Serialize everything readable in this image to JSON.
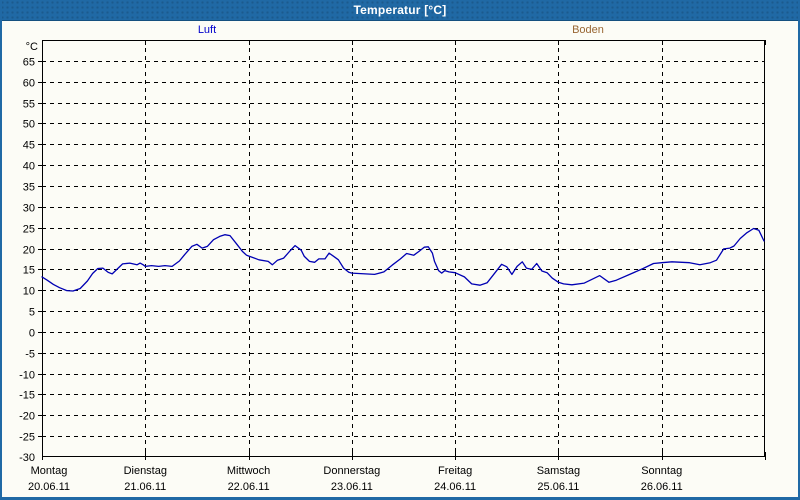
{
  "window": {
    "title": "Temperatur [°C]"
  },
  "legend": {
    "position": "top",
    "series": [
      {
        "label": "Luft",
        "color": "#0000cc"
      },
      {
        "label": "Boden",
        "color": "#996633"
      }
    ]
  },
  "chart_data": {
    "type": "line",
    "title": "Temperatur [°C]",
    "ylabel": "°C",
    "ylim": [
      -30,
      70
    ],
    "ytick_step": 5,
    "ytick_label_min": -30,
    "ytick_label_max": 65,
    "grid": "dashed",
    "x_days": [
      {
        "name": "Montag",
        "date": "20.06.11"
      },
      {
        "name": "Dienstag",
        "date": "21.06.11"
      },
      {
        "name": "Mittwoch",
        "date": "22.06.11"
      },
      {
        "name": "Donnerstag",
        "date": "23.06.11"
      },
      {
        "name": "Freitag",
        "date": "24.06.11"
      },
      {
        "name": "Samstag",
        "date": "25.06.11"
      },
      {
        "name": "Sonntag",
        "date": "26.06.11"
      }
    ],
    "x_unit": "days_from_20_06_11",
    "series": [
      {
        "name": "Luft",
        "color": "#0000b3",
        "points": [
          [
            0.0,
            13.2
          ],
          [
            0.05,
            12.4
          ],
          [
            0.11,
            11.4
          ],
          [
            0.17,
            10.6
          ],
          [
            0.24,
            9.9
          ],
          [
            0.3,
            9.8
          ],
          [
            0.37,
            10.4
          ],
          [
            0.44,
            12.2
          ],
          [
            0.49,
            14.0
          ],
          [
            0.54,
            15.2
          ],
          [
            0.59,
            15.3
          ],
          [
            0.64,
            14.3
          ],
          [
            0.68,
            13.9
          ],
          [
            0.73,
            15.1
          ],
          [
            0.78,
            16.3
          ],
          [
            0.85,
            16.5
          ],
          [
            0.92,
            16.1
          ],
          [
            0.95,
            16.5
          ],
          [
            0.98,
            16.1
          ],
          [
            1.0,
            15.7
          ],
          [
            1.06,
            15.9
          ],
          [
            1.13,
            15.7
          ],
          [
            1.19,
            15.9
          ],
          [
            1.26,
            15.7
          ],
          [
            1.33,
            17.0
          ],
          [
            1.38,
            18.5
          ],
          [
            1.45,
            20.5
          ],
          [
            1.5,
            21.0
          ],
          [
            1.55,
            20.1
          ],
          [
            1.6,
            20.5
          ],
          [
            1.66,
            22.1
          ],
          [
            1.72,
            22.9
          ],
          [
            1.77,
            23.3
          ],
          [
            1.82,
            23.1
          ],
          [
            1.89,
            20.9
          ],
          [
            1.94,
            19.3
          ],
          [
            1.98,
            18.4
          ],
          [
            2.0,
            18.2
          ],
          [
            2.1,
            17.3
          ],
          [
            2.19,
            16.9
          ],
          [
            2.23,
            16.1
          ],
          [
            2.28,
            17.2
          ],
          [
            2.34,
            17.7
          ],
          [
            2.4,
            19.4
          ],
          [
            2.45,
            20.7
          ],
          [
            2.51,
            19.6
          ],
          [
            2.54,
            18.1
          ],
          [
            2.59,
            16.9
          ],
          [
            2.64,
            16.7
          ],
          [
            2.68,
            17.5
          ],
          [
            2.74,
            17.5
          ],
          [
            2.78,
            18.9
          ],
          [
            2.83,
            18.0
          ],
          [
            2.87,
            17.3
          ],
          [
            2.92,
            15.3
          ],
          [
            2.97,
            14.3
          ],
          [
            3.0,
            14.1
          ],
          [
            3.13,
            13.9
          ],
          [
            3.22,
            13.8
          ],
          [
            3.31,
            14.4
          ],
          [
            3.39,
            16.0
          ],
          [
            3.47,
            17.5
          ],
          [
            3.53,
            18.8
          ],
          [
            3.6,
            18.4
          ],
          [
            3.65,
            19.3
          ],
          [
            3.7,
            20.3
          ],
          [
            3.74,
            20.4
          ],
          [
            3.78,
            18.9
          ],
          [
            3.8,
            16.9
          ],
          [
            3.84,
            14.7
          ],
          [
            3.87,
            14.1
          ],
          [
            3.9,
            14.7
          ],
          [
            3.94,
            14.4
          ],
          [
            4.0,
            14.2
          ],
          [
            4.09,
            13.2
          ],
          [
            4.16,
            11.5
          ],
          [
            4.24,
            11.2
          ],
          [
            4.31,
            11.8
          ],
          [
            4.37,
            13.7
          ],
          [
            4.45,
            16.2
          ],
          [
            4.5,
            15.6
          ],
          [
            4.55,
            13.8
          ],
          [
            4.6,
            15.7
          ],
          [
            4.65,
            16.8
          ],
          [
            4.69,
            15.3
          ],
          [
            4.74,
            15.0
          ],
          [
            4.79,
            16.4
          ],
          [
            4.84,
            14.6
          ],
          [
            4.89,
            14.2
          ],
          [
            4.94,
            12.9
          ],
          [
            5.0,
            11.9
          ],
          [
            5.05,
            11.5
          ],
          [
            5.13,
            11.3
          ],
          [
            5.25,
            11.7
          ],
          [
            5.35,
            12.9
          ],
          [
            5.4,
            13.5
          ],
          [
            5.49,
            11.9
          ],
          [
            5.56,
            12.4
          ],
          [
            5.69,
            13.8
          ],
          [
            5.82,
            15.2
          ],
          [
            5.92,
            16.4
          ],
          [
            6.0,
            16.6
          ],
          [
            6.1,
            16.8
          ],
          [
            6.27,
            16.6
          ],
          [
            6.37,
            16.1
          ],
          [
            6.47,
            16.6
          ],
          [
            6.53,
            17.2
          ],
          [
            6.6,
            19.9
          ],
          [
            6.66,
            20.1
          ],
          [
            6.7,
            20.6
          ],
          [
            6.76,
            22.4
          ],
          [
            6.82,
            23.7
          ],
          [
            6.89,
            24.8
          ],
          [
            6.94,
            24.4
          ],
          [
            6.99,
            21.8
          ]
        ]
      },
      {
        "name": "Boden",
        "color": "#996633",
        "points": []
      }
    ]
  }
}
